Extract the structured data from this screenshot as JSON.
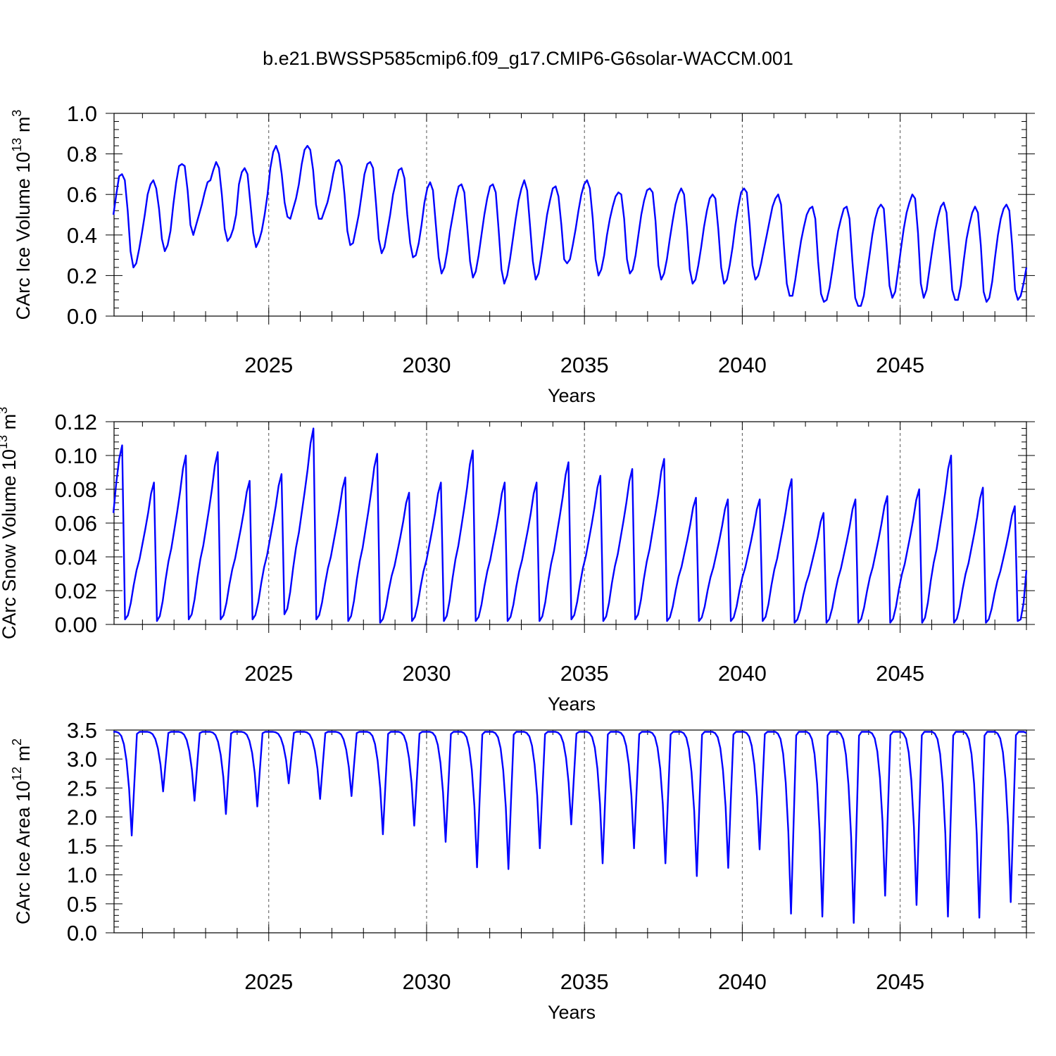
{
  "figure_title": "b.e21.BWSSP585cmip6.f09_g17.CMIP6-G6solar-WACCM.001",
  "chart_data": [
    {
      "type": "line",
      "title": "b.e21.BWSSP585cmip6.f09_g17.CMIP6-G6solar-WACCM.001",
      "xlabel": "Years",
      "ylabel": "CArc Ice Volume 10",
      "ylabel_exp": "13",
      "ylabel_unit": " m",
      "ylabel_unit_exp": "3",
      "xlim": [
        2020.1,
        2049.0
      ],
      "ylim": [
        0.0,
        1.0
      ],
      "xticks": [
        2025,
        2030,
        2035,
        2040,
        2045
      ],
      "xtick_labels": [
        "2025",
        "2030",
        "2035",
        "2040",
        "2045"
      ],
      "yticks": [
        0.0,
        0.2,
        0.4,
        0.6,
        0.8,
        1.0
      ],
      "ytick_labels": [
        "0.0",
        "0.2",
        "0.4",
        "0.6",
        "0.8",
        "1.0"
      ],
      "series": [
        {
          "name": "CArc Ice Volume",
          "color": "#0000ff",
          "x_start": 2020.0,
          "x_step": 0.0833333,
          "cycle_values": [
            [
              0.5,
              0.6,
              0.69,
              0.7,
              0.67,
              0.52,
              0.32,
              0.24,
              0.26,
              0.33,
              0.41,
              0.5,
              0.6,
              0.65,
              0.67,
              0.63,
              0.53,
              0.38,
              0.32,
              0.35,
              0.42
            ],
            [
              0.55,
              0.66,
              0.74,
              0.75,
              0.74,
              0.62,
              0.45,
              0.4,
              0.45,
              0.5,
              0.55,
              0.61,
              0.66,
              0.67,
              0.72,
              0.76,
              0.73,
              0.6,
              0.43,
              0.37,
              0.39,
              0.43,
              0.5
            ],
            [
              0.65,
              0.71,
              0.73,
              0.7,
              0.56,
              0.41,
              0.34,
              0.37,
              0.42,
              0.5
            ],
            [
              0.6,
              0.73,
              0.81,
              0.84,
              0.8,
              0.7,
              0.56,
              0.49,
              0.48,
              0.53,
              0.58
            ],
            [
              0.65,
              0.75,
              0.82,
              0.84,
              0.82,
              0.72,
              0.55,
              0.48,
              0.48,
              0.52,
              0.56
            ],
            [
              0.62,
              0.7,
              0.76,
              0.77,
              0.74,
              0.6,
              0.42,
              0.35,
              0.36,
              0.43,
              0.5
            ],
            [
              0.6,
              0.7,
              0.75,
              0.76,
              0.73,
              0.56,
              0.38,
              0.31,
              0.34,
              0.42,
              0.5
            ],
            [
              0.6,
              0.66,
              0.72,
              0.73,
              0.68,
              0.5,
              0.36,
              0.29,
              0.3,
              0.36
            ],
            [
              0.45,
              0.56,
              0.63,
              0.66,
              0.62,
              0.45,
              0.29,
              0.21,
              0.24,
              0.32
            ],
            [
              0.42,
              0.5,
              0.58,
              0.64,
              0.65,
              0.61,
              0.44,
              0.27,
              0.19,
              0.22,
              0.3
            ],
            [
              0.4,
              0.5,
              0.58,
              0.64,
              0.65,
              0.61,
              0.43,
              0.23,
              0.16,
              0.2,
              0.28
            ],
            [
              0.38,
              0.48,
              0.57,
              0.63,
              0.67,
              0.62,
              0.45,
              0.27,
              0.18,
              0.21,
              0.3
            ],
            [
              0.4,
              0.5,
              0.57,
              0.63,
              0.64,
              0.59,
              0.45,
              0.28,
              0.26,
              0.28,
              0.35
            ],
            [
              0.43,
              0.52,
              0.6,
              0.65,
              0.67,
              0.63,
              0.48,
              0.28,
              0.2,
              0.23,
              0.3
            ],
            [
              0.4,
              0.48,
              0.54,
              0.59,
              0.61,
              0.6,
              0.48,
              0.28,
              0.21,
              0.23,
              0.3
            ],
            [
              0.4,
              0.5,
              0.57,
              0.62,
              0.63,
              0.61,
              0.47,
              0.25,
              0.18,
              0.21,
              0.28
            ],
            [
              0.38,
              0.47,
              0.55,
              0.6,
              0.63,
              0.6,
              0.44,
              0.23,
              0.16,
              0.18,
              0.25
            ],
            [
              0.34,
              0.44,
              0.52,
              0.58,
              0.6,
              0.58,
              0.43,
              0.24,
              0.16,
              0.18,
              0.25
            ],
            [
              0.34,
              0.45,
              0.54,
              0.61,
              0.63,
              0.61,
              0.45,
              0.25,
              0.18,
              0.2,
              0.26
            ],
            [
              0.33,
              0.4,
              0.47,
              0.54,
              0.58,
              0.6,
              0.55,
              0.35,
              0.16,
              0.1,
              0.1
            ],
            [
              0.18,
              0.28,
              0.37,
              0.44,
              0.5,
              0.53,
              0.54,
              0.48,
              0.27,
              0.11,
              0.07,
              0.08,
              0.14
            ],
            [
              0.23,
              0.33,
              0.42,
              0.48,
              0.53,
              0.54,
              0.48,
              0.27,
              0.09,
              0.05,
              0.05,
              0.1
            ],
            [
              0.2,
              0.3,
              0.4,
              0.48,
              0.53,
              0.55,
              0.53,
              0.35,
              0.15,
              0.09,
              0.12
            ],
            [
              0.22,
              0.33,
              0.43,
              0.51,
              0.56,
              0.6,
              0.58,
              0.41,
              0.16,
              0.09,
              0.13
            ],
            [
              0.23,
              0.33,
              0.42,
              0.49,
              0.54,
              0.56,
              0.51,
              0.32,
              0.13,
              0.08,
              0.08,
              0.15
            ],
            [
              0.27,
              0.38,
              0.45,
              0.51,
              0.54,
              0.51,
              0.35,
              0.12,
              0.07,
              0.09,
              0.17
            ],
            [
              0.29,
              0.4,
              0.48,
              0.53,
              0.55,
              0.52,
              0.35,
              0.13,
              0.08,
              0.1,
              0.16,
              0.24
            ]
          ]
        }
      ]
    },
    {
      "type": "line",
      "xlabel": "Years",
      "ylabel": "CArc Snow Volume 10",
      "ylabel_exp": "13",
      "ylabel_unit": " m",
      "ylabel_unit_exp": "3",
      "xlim": [
        2020.1,
        2049.0
      ],
      "ylim": [
        0.0,
        0.12
      ],
      "xticks": [
        2025,
        2030,
        2035,
        2040,
        2045
      ],
      "xtick_labels": [
        "2025",
        "2030",
        "2035",
        "2040",
        "2045"
      ],
      "yticks": [
        0.0,
        0.02,
        0.04,
        0.06,
        0.08,
        0.1,
        0.12
      ],
      "ytick_labels": [
        "0.00",
        "0.02",
        "0.04",
        "0.06",
        "0.08",
        "0.10",
        "0.12"
      ],
      "series": [
        {
          "name": "CArc Snow Volume",
          "color": "#0000ff",
          "peaks": [
            0.106,
            0.084,
            0.1,
            0.102,
            0.085,
            0.089,
            0.116,
            0.087,
            0.101,
            0.078,
            0.084,
            0.103,
            0.084,
            0.084,
            0.096,
            0.088,
            0.092,
            0.098,
            0.075,
            0.074,
            0.074,
            0.086,
            0.066,
            0.074,
            0.076,
            0.08,
            0.1,
            0.081,
            0.07
          ],
          "minima": [
            0.003,
            0.002,
            0.003,
            0.003,
            0.003,
            0.006,
            0.003,
            0.002,
            0.001,
            0.002,
            0.002,
            0.002,
            0.002,
            0.002,
            0.003,
            0.002,
            0.003,
            0.002,
            0.002,
            0.002,
            0.002,
            0.001,
            0.001,
            0.001,
            0.001,
            0.001,
            0.001,
            0.001,
            0.002
          ],
          "start_value": 0.066,
          "end_value": 0.032
        }
      ]
    },
    {
      "type": "line",
      "xlabel": "Years",
      "ylabel": "CArc Ice Area 10",
      "ylabel_exp": "12",
      "ylabel_unit": " m",
      "ylabel_unit_exp": "2",
      "xlim": [
        2020.1,
        2049.0
      ],
      "ylim": [
        0.0,
        3.5
      ],
      "xticks": [
        2025,
        2030,
        2035,
        2040,
        2045
      ],
      "xtick_labels": [
        "2025",
        "2030",
        "2035",
        "2040",
        "2045"
      ],
      "yticks": [
        0.0,
        0.5,
        1.0,
        1.5,
        2.0,
        2.5,
        3.0,
        3.5
      ],
      "ytick_labels": [
        "0.0",
        "0.5",
        "1.0",
        "1.5",
        "2.0",
        "2.5",
        "3.0",
        "3.5"
      ],
      "series": [
        {
          "name": "CArc Ice Area",
          "color": "#0000ff",
          "plateau": 3.47,
          "minima": [
            1.68,
            2.44,
            2.28,
            2.05,
            2.18,
            2.58,
            2.31,
            2.36,
            1.7,
            1.85,
            1.57,
            1.13,
            1.1,
            1.46,
            1.87,
            1.2,
            1.46,
            1.2,
            0.98,
            1.12,
            1.44,
            0.33,
            0.28,
            0.17,
            0.64,
            0.48,
            0.28,
            0.26,
            0.53
          ],
          "end_value": 3.45
        }
      ]
    }
  ]
}
